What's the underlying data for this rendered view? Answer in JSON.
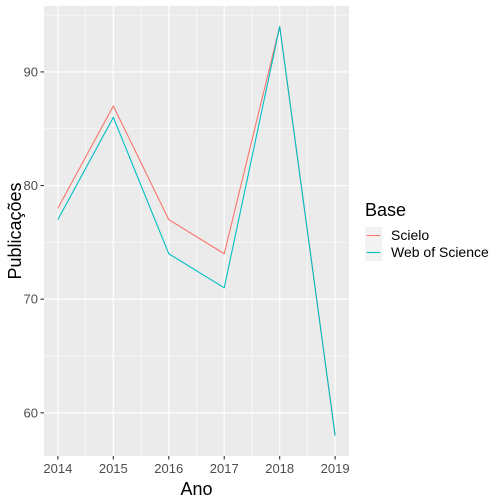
{
  "chart_data": {
    "type": "line",
    "title": "",
    "xlabel": "Ano",
    "ylabel": "Publicações",
    "x": [
      2014,
      2015,
      2016,
      2017,
      2018,
      2019
    ],
    "xlim": [
      2013.75,
      2019.25
    ],
    "ylim": [
      56.2,
      95.8
    ],
    "yticks": [
      60,
      70,
      80,
      90
    ],
    "grid": true,
    "legend": {
      "title": "Base",
      "position": "right"
    },
    "series": [
      {
        "name": "Scielo",
        "color": "#F8766D",
        "values": [
          78,
          87,
          77,
          74,
          94,
          58
        ]
      },
      {
        "name": "Web of Science",
        "color": "#00BFC4",
        "values": [
          77,
          86,
          74,
          71,
          94,
          58
        ]
      }
    ]
  }
}
